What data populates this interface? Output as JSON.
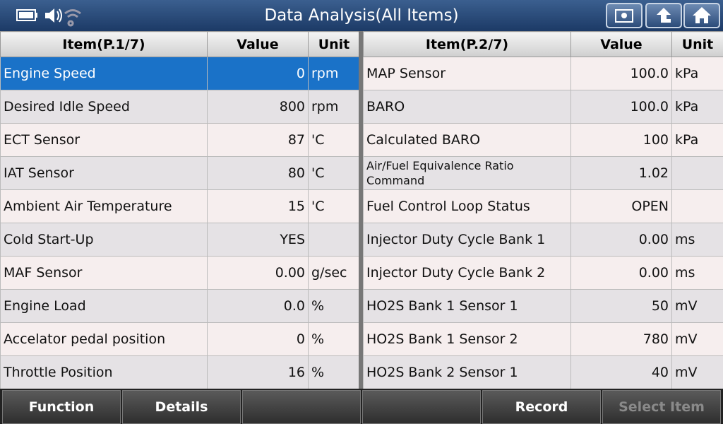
{
  "header": {
    "title": "Data Analysis(All Items)"
  },
  "left_table": {
    "columns": [
      "Item(P.1/7)",
      "Value",
      "Unit"
    ],
    "rows": [
      {
        "item": "Engine Speed",
        "value": "0",
        "unit": "rpm"
      },
      {
        "item": "Desired Idle Speed",
        "value": "800",
        "unit": "rpm"
      },
      {
        "item": "ECT Sensor",
        "value": "87",
        "unit": "'C"
      },
      {
        "item": "IAT Sensor",
        "value": "80",
        "unit": "'C"
      },
      {
        "item": "Ambient Air Temperature",
        "value": "15",
        "unit": "'C"
      },
      {
        "item": "Cold Start-Up",
        "value": "YES"
      },
      {
        "item": "MAF Sensor",
        "value": "0.00",
        "unit": "g/sec"
      },
      {
        "item": "Engine Load",
        "value": "0.0",
        "unit": "%"
      },
      {
        "item": "Accelator pedal position",
        "value": "0",
        "unit": "%"
      },
      {
        "item": "Throttle Position",
        "value": "16",
        "unit": "%"
      }
    ]
  },
  "right_table": {
    "columns": [
      "Item(P.2/7)",
      "Value",
      "Unit"
    ],
    "rows": [
      {
        "item": "MAP Sensor",
        "value": "100.0",
        "unit": "kPa"
      },
      {
        "item": "BARO",
        "value": "100.0",
        "unit": "kPa"
      },
      {
        "item": "Calculated BARO",
        "value": "100",
        "unit": "kPa"
      },
      {
        "item": "Air/Fuel Equivalence Ratio Command",
        "value": "1.02"
      },
      {
        "item": "Fuel Control Loop Status",
        "value": "OPEN"
      },
      {
        "item": "Injector Duty Cycle Bank 1",
        "value": "0.00",
        "unit": "ms"
      },
      {
        "item": "Injector Duty Cycle Bank 2",
        "value": "0.00",
        "unit": "ms"
      },
      {
        "item": "HO2S Bank 1 Sensor 1",
        "value": "50",
        "unit": "mV"
      },
      {
        "item": "HO2S Bank 1 Sensor 2",
        "value": "780",
        "unit": "mV"
      },
      {
        "item": "HO2S Bank 2 Sensor 1",
        "value": "40",
        "unit": "mV"
      }
    ]
  },
  "footer": {
    "function": "Function",
    "details": "Details",
    "record": "Record",
    "select_item": "Select Item"
  }
}
